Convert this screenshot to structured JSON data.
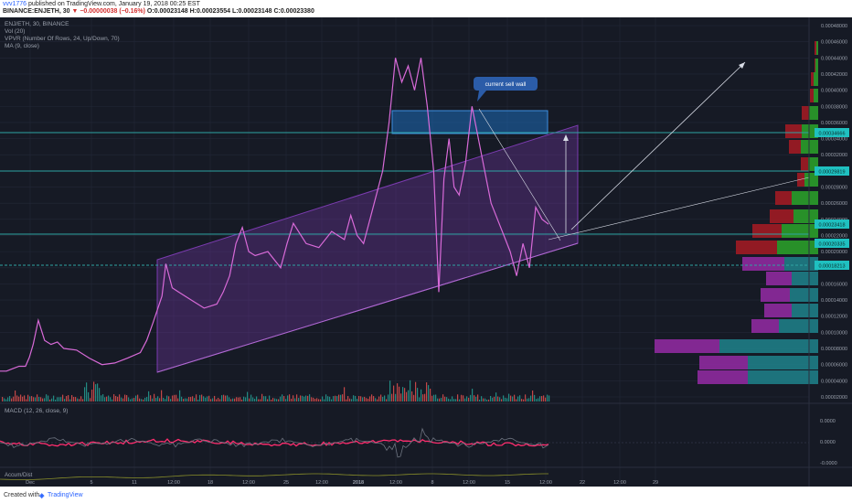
{
  "header": {
    "user": "vvv1776",
    "published": "published on TradingView.com, January 19, 2018 00:25 EST",
    "quote_line_1": "BINANCE:ENJETH, 30",
    "change": "▼ −0.00000038 (−0.16%)",
    "ohlc": "O:0.00023148 H:0.00023554 L:0.00023148 C:0.00023380"
  },
  "legend": {
    "symbol": "ENJ/ETH, 30, BINANCE",
    "vol": "Vol (20)",
    "vpvr": "VPVR (Number Of Rows, 24, Up/Down, 70)",
    "ma": "MA (9, close)",
    "macd": "MACD (12, 26, close, 9)",
    "accum": "Accum/Dist"
  },
  "annotation": "current sell wall",
  "footer": {
    "created": "Created with",
    "brand": "TradingView"
  },
  "colors": {
    "bg": "#161a25",
    "grid": "#232838",
    "text": "#9aa0ac",
    "price": "#d86ad8",
    "channel": "#7b3bb0",
    "zone": "#1e6bb8",
    "hline": "#2fa4a4",
    "vol_up": "#26a69a",
    "vol_down": "#ef5350",
    "vp_red": "#a01b23",
    "vp_green": "#2a9d2a",
    "vp_purple": "#8e2a9e",
    "vp_teal": "#1e7d86",
    "label_bg": "#1fc0c0"
  },
  "chart_data": {
    "type": "line",
    "title": "ENJ/ETH, 30, BINANCE",
    "x_tick_labels": [
      "Dec",
      "5",
      "11",
      "12:00",
      "18",
      "12:00",
      "25",
      "12:00",
      "2018",
      "12:00",
      "8",
      "12:00",
      "15",
      "12:00",
      "22",
      "12:00",
      "29"
    ],
    "y_tick_labels": [
      "0.00048000",
      "0.00046000",
      "0.00044000",
      "0.00042000",
      "0.00040000",
      "0.00038000",
      "0.00036000",
      "0.00034000",
      "0.00032000",
      "0.00030000",
      "0.00028000",
      "0.00026000",
      "0.00024000",
      "0.00022000",
      "0.00020000",
      "0.00018000",
      "0.00016000",
      "0.00014000",
      "0.00012000",
      "0.00010000",
      "0.00008000",
      "0.00006000",
      "0.00004000",
      "0.00002000"
    ],
    "ylim": [
      2e-05,
      0.00048
    ],
    "price_labels": [
      "0.00034666",
      "0.00029819",
      "0.00023418",
      "0.00020335",
      "0.00018213"
    ],
    "macd_ticks": [
      "0.0000",
      "0.0000",
      "-0.0000"
    ],
    "price_series": [
      {
        "x": 0.0,
        "y": 5.2e-05
      },
      {
        "x": 0.5,
        "y": 5.2e-05
      },
      {
        "x": 1.0,
        "y": 5.5e-05
      },
      {
        "x": 1.5,
        "y": 5.8e-05
      },
      {
        "x": 2.0,
        "y": 5.8e-05
      },
      {
        "x": 2.3,
        "y": 6.9e-05
      },
      {
        "x": 2.6,
        "y": 8.5e-05
      },
      {
        "x": 3.0,
        "y": 0.000115
      },
      {
        "x": 3.5,
        "y": 9e-05
      },
      {
        "x": 4.0,
        "y": 8.5e-05
      },
      {
        "x": 4.5,
        "y": 8.8e-05
      },
      {
        "x": 5.0,
        "y": 8e-05
      },
      {
        "x": 6.0,
        "y": 7.8e-05
      },
      {
        "x": 7.0,
        "y": 6.8e-05
      },
      {
        "x": 8.0,
        "y": 6e-05
      },
      {
        "x": 9.0,
        "y": 6.2e-05
      },
      {
        "x": 10.0,
        "y": 6.8e-05
      },
      {
        "x": 11.0,
        "y": 7.5e-05
      },
      {
        "x": 11.5,
        "y": 9e-05
      },
      {
        "x": 12.0,
        "y": 0.000112
      },
      {
        "x": 12.7,
        "y": 0.000145
      },
      {
        "x": 13.0,
        "y": 0.000185
      },
      {
        "x": 13.5,
        "y": 0.000155
      },
      {
        "x": 14.0,
        "y": 0.00015
      },
      {
        "x": 15.0,
        "y": 0.00014
      },
      {
        "x": 16.0,
        "y": 0.00013
      },
      {
        "x": 17.0,
        "y": 0.000135
      },
      {
        "x": 17.5,
        "y": 0.00015
      },
      {
        "x": 18.0,
        "y": 0.00017
      },
      {
        "x": 18.5,
        "y": 0.00021
      },
      {
        "x": 19.0,
        "y": 0.00023
      },
      {
        "x": 19.5,
        "y": 0.0002
      },
      {
        "x": 20.0,
        "y": 0.000195
      },
      {
        "x": 21.0,
        "y": 0.0002
      },
      {
        "x": 22.0,
        "y": 0.00018
      },
      {
        "x": 22.5,
        "y": 0.00021
      },
      {
        "x": 23.0,
        "y": 0.000235
      },
      {
        "x": 24.0,
        "y": 0.00021
      },
      {
        "x": 25.0,
        "y": 0.000205
      },
      {
        "x": 26.0,
        "y": 0.000225
      },
      {
        "x": 27.0,
        "y": 0.000215
      },
      {
        "x": 27.5,
        "y": 0.000245
      },
      {
        "x": 28.0,
        "y": 0.00022
      },
      {
        "x": 28.5,
        "y": 0.00021
      },
      {
        "x": 29.0,
        "y": 0.00024
      },
      {
        "x": 30.0,
        "y": 0.0003
      },
      {
        "x": 30.5,
        "y": 0.00036
      },
      {
        "x": 31.0,
        "y": 0.00044
      },
      {
        "x": 31.5,
        "y": 0.00041
      },
      {
        "x": 32.0,
        "y": 0.00043
      },
      {
        "x": 32.5,
        "y": 0.0004
      },
      {
        "x": 33.0,
        "y": 0.00044
      },
      {
        "x": 33.5,
        "y": 0.00038
      },
      {
        "x": 34.0,
        "y": 0.0003
      },
      {
        "x": 34.4,
        "y": 0.00015
      },
      {
        "x": 34.8,
        "y": 0.00029
      },
      {
        "x": 35.2,
        "y": 0.00034
      },
      {
        "x": 35.6,
        "y": 0.00028
      },
      {
        "x": 36.0,
        "y": 0.00027
      },
      {
        "x": 36.5,
        "y": 0.00031
      },
      {
        "x": 37.0,
        "y": 0.00038
      },
      {
        "x": 37.5,
        "y": 0.00034
      },
      {
        "x": 38.0,
        "y": 0.0003
      },
      {
        "x": 38.5,
        "y": 0.00026
      },
      {
        "x": 39.0,
        "y": 0.00024
      },
      {
        "x": 39.5,
        "y": 0.00022
      },
      {
        "x": 40.0,
        "y": 0.0002
      },
      {
        "x": 40.5,
        "y": 0.00017
      },
      {
        "x": 41.0,
        "y": 0.00021
      },
      {
        "x": 41.5,
        "y": 0.00018
      },
      {
        "x": 42.0,
        "y": 0.000255
      },
      {
        "x": 42.5,
        "y": 0.00024
      },
      {
        "x": 43.0,
        "y": 0.000234
      }
    ]
  }
}
